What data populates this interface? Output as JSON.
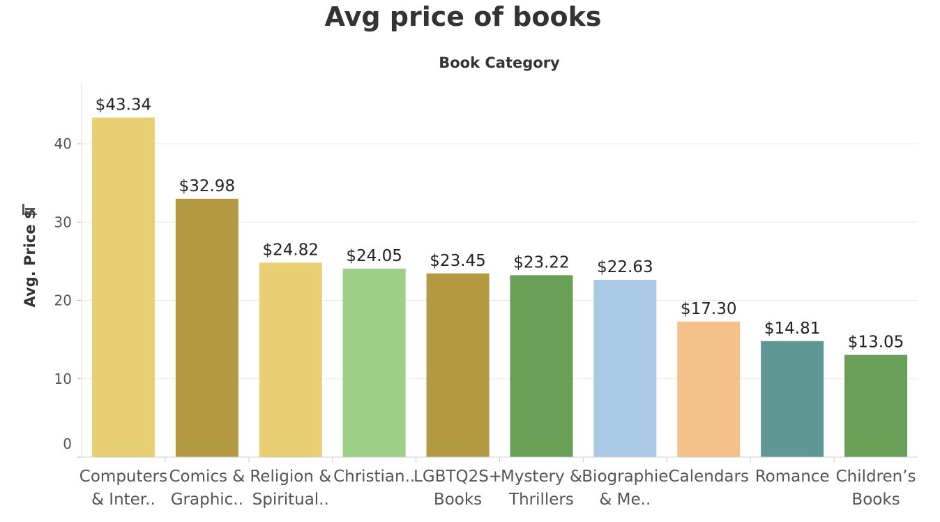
{
  "chart_data": {
    "type": "bar",
    "title": "Avg price of books",
    "header_label": "Book Category",
    "ylabel": "Avg. Price $",
    "ylim": [
      0,
      47
    ],
    "yticks": [
      0,
      10,
      20,
      30,
      40
    ],
    "grid": true,
    "categories": [
      [
        "Computers",
        "& Inter.."
      ],
      [
        "Comics &",
        "Graphic.."
      ],
      [
        "Religion &",
        "Spiritual.."
      ],
      [
        "Christian.."
      ],
      [
        "LGBTQ2S+",
        "Books"
      ],
      [
        "Mystery &",
        "Thrillers"
      ],
      [
        "Biographie",
        "& Me.."
      ],
      [
        "Calendars"
      ],
      [
        "Romance"
      ],
      [
        "Children’s",
        "Books"
      ]
    ],
    "values": [
      43.34,
      32.98,
      24.82,
      24.05,
      23.45,
      23.22,
      22.63,
      17.3,
      14.81,
      13.05
    ],
    "value_labels": [
      "$43.34",
      "$32.98",
      "$24.82",
      "$24.05",
      "$23.45",
      "$23.22",
      "$22.63",
      "$17.30",
      "$14.81",
      "$13.05"
    ],
    "colors": [
      "#e9cf74",
      "#b39a42",
      "#e9cf74",
      "#9dcf86",
      "#b39a42",
      "#6a9f58",
      "#a9c9e5",
      "#f5c18a",
      "#5f9792",
      "#6a9f58"
    ]
  }
}
